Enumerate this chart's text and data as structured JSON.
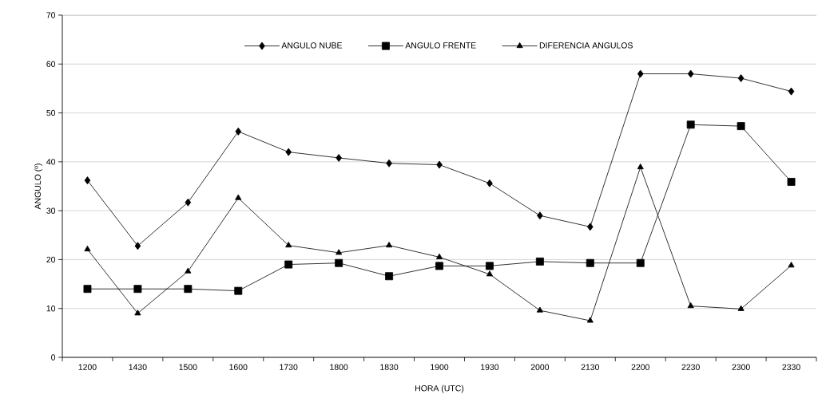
{
  "chart_data": {
    "type": "line",
    "xlabel": "HORA (UTC)",
    "ylabel": "ANGULO (º)",
    "categories": [
      "1200",
      "1430",
      "1500",
      "1600",
      "1730",
      "1800",
      "1830",
      "1900",
      "1930",
      "2000",
      "2130",
      "2200",
      "2230",
      "2300",
      "2330"
    ],
    "series": [
      {
        "name": "ANGULO NUBE",
        "color": "#000000",
        "marker": "diamond",
        "values": [
          36.2,
          22.8,
          31.7,
          46.2,
          42.0,
          40.8,
          39.7,
          39.4,
          35.6,
          29.0,
          26.7,
          58.0,
          58.0,
          57.1,
          54.4
        ]
      },
      {
        "name": "ANGULO FRENTE",
        "color": "#000000",
        "marker": "square",
        "values": [
          14.0,
          14.0,
          14.0,
          13.6,
          19.0,
          19.3,
          16.6,
          18.7,
          18.7,
          19.6,
          19.3,
          19.3,
          47.6,
          47.3,
          35.9
        ]
      },
      {
        "name": "DIFERENCIA ANGULOS",
        "color": "#000000",
        "marker": "triangle",
        "values": [
          22.1,
          9.0,
          17.6,
          32.6,
          22.9,
          21.4,
          22.9,
          20.5,
          17.0,
          9.6,
          7.5,
          38.9,
          10.5,
          9.9,
          18.8
        ]
      }
    ],
    "ylim": [
      0,
      70
    ],
    "yticks": [
      0,
      10,
      20,
      30,
      40,
      50,
      60,
      70
    ],
    "grid": "y",
    "legend": "top",
    "line_style": "solid"
  }
}
